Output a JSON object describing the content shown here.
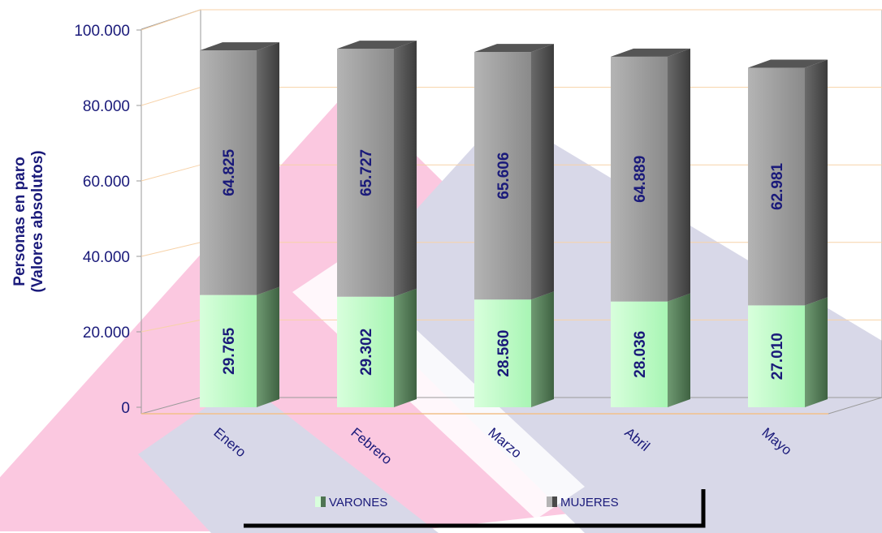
{
  "chart_data": {
    "type": "bar",
    "stacked": true,
    "three_d": true,
    "categories": [
      "Enero",
      "Febrero",
      "Marzo",
      "Abril",
      "Mayo"
    ],
    "series": [
      {
        "name": "VARONES",
        "values": [
          29765,
          29302,
          28560,
          28036,
          27010
        ],
        "color": "#b3ffc0",
        "label_text": [
          "29.765",
          "29.302",
          "28.560",
          "28.036",
          "27.010"
        ]
      },
      {
        "name": "MUJERES",
        "values": [
          64825,
          65727,
          65606,
          64889,
          62981
        ],
        "color": "#8c8c8c",
        "label_text": [
          "64.825",
          "65.727",
          "65.606",
          "64.889",
          "62.981"
        ]
      }
    ],
    "ylabel_line1": "Personas en paro",
    "ylabel_line2": "(Valores absolutos)",
    "ylim": [
      0,
      100000
    ],
    "yticks": [
      {
        "value": 0,
        "label": "0"
      },
      {
        "value": 20000,
        "label": "20.000"
      },
      {
        "value": 40000,
        "label": "40.000"
      },
      {
        "value": 60000,
        "label": "60.000"
      },
      {
        "value": 80000,
        "label": "80.000"
      },
      {
        "value": 100000,
        "label": "100.000"
      }
    ],
    "grid": true,
    "legend_position": "bottom"
  }
}
